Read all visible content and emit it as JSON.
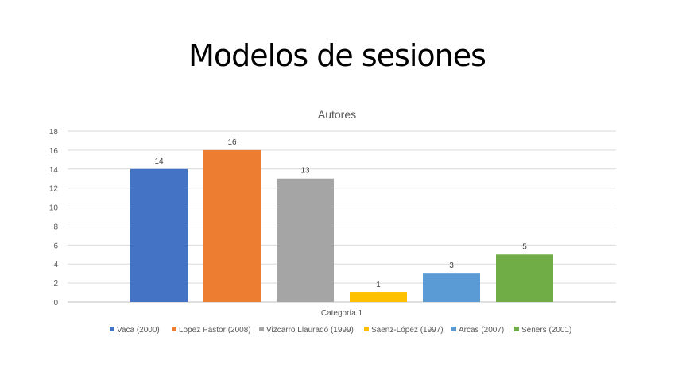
{
  "slide_title": "Modelos de sesiones",
  "chart_data": {
    "type": "bar",
    "title": "Autores",
    "categories": [
      "Categoría 1"
    ],
    "series": [
      {
        "name": "Vaca (2000)",
        "values": [
          14
        ],
        "color": "#4472C4"
      },
      {
        "name": "Lopez Pastor (2008)",
        "values": [
          16
        ],
        "color": "#ED7D31"
      },
      {
        "name": "Vizcarro Llauradó (1999)",
        "values": [
          13
        ],
        "color": "#A5A5A5"
      },
      {
        "name": "Saenz-López (1997)",
        "values": [
          1
        ],
        "color": "#FFC000"
      },
      {
        "name": "Arcas (2007)",
        "values": [
          3
        ],
        "color": "#5B9BD5"
      },
      {
        "name": "Seners (2001)",
        "values": [
          5
        ],
        "color": "#70AD47"
      }
    ],
    "ylim": [
      0,
      18
    ],
    "yticks": [
      0,
      2,
      4,
      6,
      8,
      10,
      12,
      14,
      16,
      18
    ],
    "grid": true,
    "legend": "bottom",
    "xlabel": "",
    "ylabel": ""
  }
}
